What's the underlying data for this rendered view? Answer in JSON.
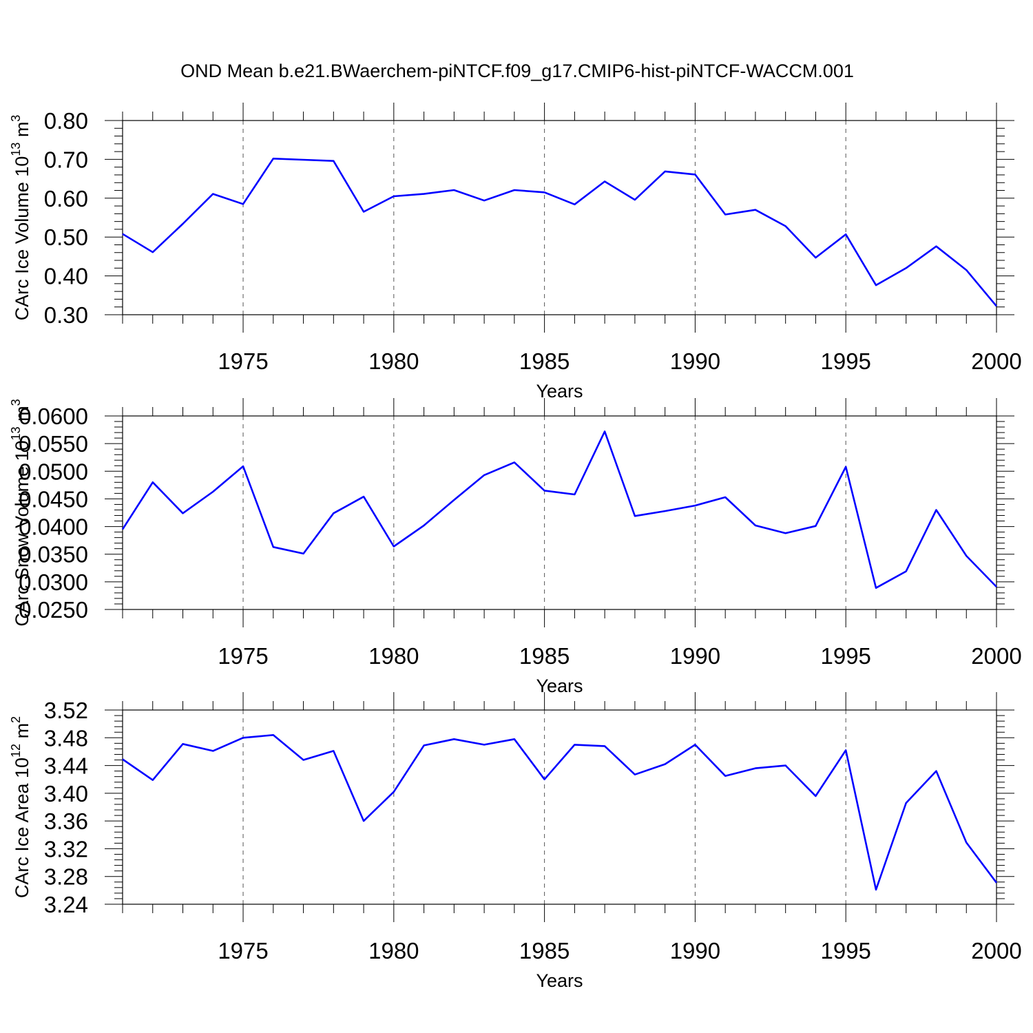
{
  "title": "OND Mean b.e21.BWaerchem-piNTCF.f09_g17.CMIP6-hist-piNTCF-WACCM.001",
  "colors": {
    "series": "#0000ff",
    "axis": "#000000",
    "grid": "#555555",
    "background": "#ffffff"
  },
  "chart_data": [
    {
      "type": "line",
      "title": "",
      "xlabel": "Years",
      "ylabel": "CArc Ice Volume 10",
      "ylabel_exponent": "13",
      "ylabel_unit": "m",
      "ylabel_unit_exponent": "3",
      "xlim": [
        1971,
        2000
      ],
      "ylim": [
        0.3,
        0.8
      ],
      "xticks": [
        1975,
        1980,
        1985,
        1990,
        1995,
        2000
      ],
      "xtick_labels": [
        "1975",
        "1980",
        "1985",
        "1990",
        "1995",
        "2000"
      ],
      "yticks": [
        0.3,
        0.4,
        0.5,
        0.6,
        0.7,
        0.8
      ],
      "ytick_labels": [
        "0.30",
        "0.40",
        "0.50",
        "0.60",
        "0.70",
        "0.80"
      ],
      "grid": "vertical dashed at major x ticks",
      "x": [
        1971,
        1972,
        1973,
        1974,
        1975,
        1976,
        1977,
        1978,
        1979,
        1980,
        1981,
        1982,
        1983,
        1984,
        1985,
        1986,
        1987,
        1988,
        1989,
        1990,
        1991,
        1992,
        1993,
        1994,
        1995,
        1996,
        1997,
        1998,
        1999,
        2000
      ],
      "series": [
        {
          "values": [
            0.508,
            0.461,
            0.534,
            0.611,
            0.585,
            0.702,
            0.699,
            0.696,
            0.565,
            0.605,
            0.611,
            0.621,
            0.594,
            0.621,
            0.615,
            0.584,
            0.643,
            0.596,
            0.669,
            0.661,
            0.558,
            0.57,
            0.528,
            0.447,
            0.507,
            0.376,
            0.42,
            0.476,
            0.415,
            0.322
          ]
        }
      ]
    },
    {
      "type": "line",
      "title": "",
      "xlabel": "Years",
      "ylabel": "CArc Snow Volume 10",
      "ylabel_exponent": "13",
      "ylabel_unit": "m",
      "ylabel_unit_exponent": "3",
      "xlim": [
        1971,
        2000
      ],
      "ylim": [
        0.025,
        0.06
      ],
      "xticks": [
        1975,
        1980,
        1985,
        1990,
        1995,
        2000
      ],
      "xtick_labels": [
        "1975",
        "1980",
        "1985",
        "1990",
        "1995",
        "2000"
      ],
      "yticks": [
        0.025,
        0.03,
        0.035,
        0.04,
        0.045,
        0.05,
        0.055,
        0.06
      ],
      "ytick_labels": [
        "0.0250",
        "0.0300",
        "0.0350",
        "0.0400",
        "0.0450",
        "0.0500",
        "0.0550",
        "0.0600"
      ],
      "grid": "vertical dashed at major x ticks",
      "x": [
        1971,
        1972,
        1973,
        1974,
        1975,
        1976,
        1977,
        1978,
        1979,
        1980,
        1981,
        1982,
        1983,
        1984,
        1985,
        1986,
        1987,
        1988,
        1989,
        1990,
        1991,
        1992,
        1993,
        1994,
        1995,
        1996,
        1997,
        1998,
        1999,
        2000
      ],
      "series": [
        {
          "values": [
            0.0395,
            0.048,
            0.0424,
            0.0463,
            0.0509,
            0.0363,
            0.0351,
            0.0424,
            0.0454,
            0.0364,
            0.0402,
            0.0448,
            0.0493,
            0.0516,
            0.0465,
            0.0458,
            0.0572,
            0.0419,
            0.0428,
            0.0438,
            0.0453,
            0.0402,
            0.0388,
            0.0401,
            0.0508,
            0.0289,
            0.0319,
            0.043,
            0.0347,
            0.0291
          ]
        }
      ]
    },
    {
      "type": "line",
      "title": "",
      "xlabel": "Years",
      "ylabel": "CArc Ice Area 10",
      "ylabel_exponent": "12",
      "ylabel_unit": "m",
      "ylabel_unit_exponent": "2",
      "xlim": [
        1971,
        2000
      ],
      "ylim": [
        3.24,
        3.52
      ],
      "xticks": [
        1975,
        1980,
        1985,
        1990,
        1995,
        2000
      ],
      "xtick_labels": [
        "1975",
        "1980",
        "1985",
        "1990",
        "1995",
        "2000"
      ],
      "yticks": [
        3.24,
        3.28,
        3.32,
        3.36,
        3.4,
        3.44,
        3.48,
        3.52
      ],
      "ytick_labels": [
        "3.24",
        "3.28",
        "3.32",
        "3.36",
        "3.40",
        "3.44",
        "3.48",
        "3.52"
      ],
      "grid": "vertical dashed at major x ticks",
      "x": [
        1971,
        1972,
        1973,
        1974,
        1975,
        1976,
        1977,
        1978,
        1979,
        1980,
        1981,
        1982,
        1983,
        1984,
        1985,
        1986,
        1987,
        1988,
        1989,
        1990,
        1991,
        1992,
        1993,
        1994,
        1995,
        1996,
        1997,
        1998,
        1999,
        2000
      ],
      "series": [
        {
          "values": [
            3.449,
            3.419,
            3.471,
            3.461,
            3.48,
            3.484,
            3.448,
            3.461,
            3.36,
            3.402,
            3.469,
            3.478,
            3.47,
            3.478,
            3.42,
            3.47,
            3.468,
            3.427,
            3.442,
            3.47,
            3.425,
            3.436,
            3.44,
            3.396,
            3.462,
            3.261,
            3.386,
            3.432,
            3.329,
            3.271
          ]
        }
      ]
    }
  ]
}
